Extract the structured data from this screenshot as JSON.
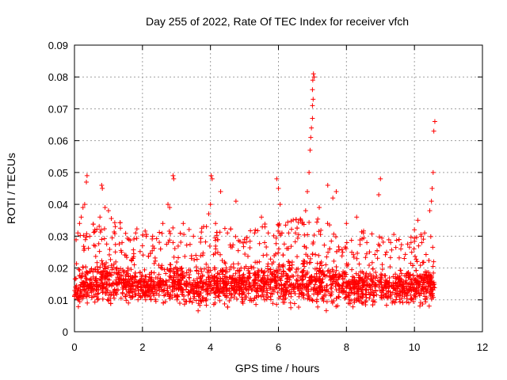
{
  "chart_data": {
    "type": "scatter",
    "title": "Day 255 of 2022, Rate Of TEC Index for receiver vfch",
    "xlabel": "GPS time / hours",
    "ylabel": "ROTI / TECUs",
    "xlim": [
      0,
      12
    ],
    "ylim": [
      0,
      0.09
    ],
    "x_ticks": [
      0,
      2,
      4,
      6,
      8,
      10,
      12
    ],
    "y_ticks": [
      0,
      0.01,
      0.02,
      0.03,
      0.04,
      0.05,
      0.06,
      0.07,
      0.08,
      0.09
    ],
    "x_tick_labels": [
      "0",
      "2",
      "4",
      "6",
      "8",
      "10",
      "12"
    ],
    "y_tick_labels": [
      "0",
      "0.01",
      "0.02",
      "0.03",
      "0.04",
      "0.05",
      "0.06",
      "0.07",
      "0.08",
      "0.09"
    ],
    "grid": true,
    "marker": "+",
    "series": [
      {
        "name": "ROTI",
        "color": "#ff0000",
        "envelope": [
          {
            "x": 0.0,
            "lo": 0.006,
            "hi": 0.018
          },
          {
            "x": 0.5,
            "lo": 0.006,
            "hi": 0.022
          },
          {
            "x": 1.0,
            "lo": 0.006,
            "hi": 0.024
          },
          {
            "x": 1.5,
            "lo": 0.006,
            "hi": 0.022
          },
          {
            "x": 2.0,
            "lo": 0.007,
            "hi": 0.02
          },
          {
            "x": 2.5,
            "lo": 0.007,
            "hi": 0.02
          },
          {
            "x": 3.0,
            "lo": 0.007,
            "hi": 0.021
          },
          {
            "x": 3.5,
            "lo": 0.006,
            "hi": 0.02
          },
          {
            "x": 4.0,
            "lo": 0.006,
            "hi": 0.022
          },
          {
            "x": 4.5,
            "lo": 0.006,
            "hi": 0.021
          },
          {
            "x": 5.0,
            "lo": 0.007,
            "hi": 0.021
          },
          {
            "x": 5.5,
            "lo": 0.007,
            "hi": 0.022
          },
          {
            "x": 6.0,
            "lo": 0.006,
            "hi": 0.023
          },
          {
            "x": 6.5,
            "lo": 0.006,
            "hi": 0.024
          },
          {
            "x": 7.0,
            "lo": 0.004,
            "hi": 0.024
          },
          {
            "x": 7.5,
            "lo": 0.006,
            "hi": 0.023
          },
          {
            "x": 8.0,
            "lo": 0.006,
            "hi": 0.021
          },
          {
            "x": 8.5,
            "lo": 0.006,
            "hi": 0.02
          },
          {
            "x": 9.0,
            "lo": 0.007,
            "hi": 0.019
          },
          {
            "x": 9.5,
            "lo": 0.007,
            "hi": 0.019
          },
          {
            "x": 10.0,
            "lo": 0.006,
            "hi": 0.02
          },
          {
            "x": 10.5,
            "lo": 0.006,
            "hi": 0.021
          },
          {
            "x": 10.6,
            "lo": 0.007,
            "hi": 0.02
          }
        ],
        "outliers": [
          [
            0.1,
            0.031
          ],
          [
            0.15,
            0.034
          ],
          [
            0.2,
            0.036
          ],
          [
            0.25,
            0.039
          ],
          [
            0.3,
            0.04
          ],
          [
            0.35,
            0.047
          ],
          [
            0.37,
            0.049
          ],
          [
            0.45,
            0.03
          ],
          [
            0.6,
            0.032
          ],
          [
            0.75,
            0.036
          ],
          [
            0.8,
            0.046
          ],
          [
            0.82,
            0.045
          ],
          [
            0.9,
            0.039
          ],
          [
            1.0,
            0.038
          ],
          [
            1.2,
            0.033
          ],
          [
            1.4,
            0.028
          ],
          [
            1.6,
            0.029
          ],
          [
            1.8,
            0.031
          ],
          [
            2.0,
            0.027
          ],
          [
            2.3,
            0.03
          ],
          [
            2.6,
            0.034
          ],
          [
            2.75,
            0.04
          ],
          [
            2.8,
            0.039
          ],
          [
            2.9,
            0.049
          ],
          [
            2.92,
            0.048
          ],
          [
            3.2,
            0.034
          ],
          [
            3.5,
            0.03
          ],
          [
            3.8,
            0.033
          ],
          [
            3.95,
            0.037
          ],
          [
            4.0,
            0.04
          ],
          [
            4.02,
            0.049
          ],
          [
            4.05,
            0.048
          ],
          [
            4.15,
            0.034
          ],
          [
            4.3,
            0.044
          ],
          [
            4.5,
            0.031
          ],
          [
            4.75,
            0.041
          ],
          [
            5.0,
            0.029
          ],
          [
            5.3,
            0.031
          ],
          [
            5.5,
            0.036
          ],
          [
            5.7,
            0.031
          ],
          [
            5.95,
            0.048
          ],
          [
            6.0,
            0.045
          ],
          [
            6.05,
            0.04
          ],
          [
            6.3,
            0.031
          ],
          [
            6.5,
            0.031
          ],
          [
            6.7,
            0.034
          ],
          [
            6.8,
            0.038
          ],
          [
            6.85,
            0.044
          ],
          [
            6.9,
            0.05
          ],
          [
            6.93,
            0.057
          ],
          [
            6.95,
            0.061
          ],
          [
            6.97,
            0.064
          ],
          [
            7.0,
            0.067
          ],
          [
            7.0,
            0.071
          ],
          [
            7.02,
            0.073
          ],
          [
            7.0,
            0.076
          ],
          [
            7.01,
            0.079
          ],
          [
            7.03,
            0.081
          ],
          [
            7.05,
            0.08
          ],
          [
            7.2,
            0.039
          ],
          [
            7.45,
            0.046
          ],
          [
            7.6,
            0.042
          ],
          [
            7.7,
            0.044
          ],
          [
            8.0,
            0.034
          ],
          [
            8.3,
            0.036
          ],
          [
            8.5,
            0.031
          ],
          [
            8.6,
            0.028
          ],
          [
            8.95,
            0.043
          ],
          [
            9.0,
            0.048
          ],
          [
            9.3,
            0.028
          ],
          [
            9.6,
            0.026
          ],
          [
            9.9,
            0.028
          ],
          [
            10.0,
            0.032
          ],
          [
            10.1,
            0.035
          ],
          [
            10.2,
            0.03
          ],
          [
            10.3,
            0.031
          ],
          [
            10.45,
            0.038
          ],
          [
            10.5,
            0.041
          ],
          [
            10.52,
            0.045
          ],
          [
            10.55,
            0.05
          ],
          [
            10.57,
            0.063
          ],
          [
            10.6,
            0.066
          ]
        ]
      }
    ]
  }
}
